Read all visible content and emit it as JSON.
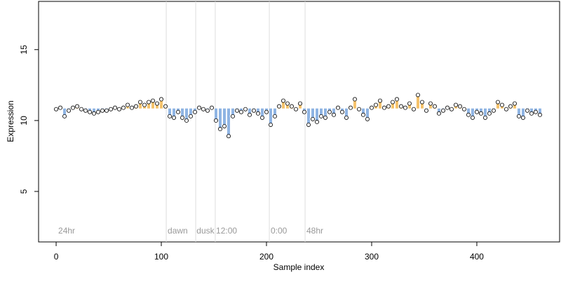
{
  "chart_data": {
    "type": "scatter",
    "x_label": "Sample index",
    "y_label": "Expression",
    "xlim": [
      -16.7,
      478.7
    ],
    "ylim": [
      1.44,
      18.4
    ],
    "xticks": [
      0,
      100,
      200,
      300,
      400
    ],
    "yticks": [
      5,
      10,
      15
    ],
    "reference_line": 10.85,
    "above_color": "#f5c26b",
    "below_color": "#8fb4e3",
    "vline_color": "#dddddd",
    "vlines": [
      104.7,
      132.7,
      151.3,
      202.7,
      236.7
    ],
    "annotations": [
      {
        "x": 2,
        "y": 2.2,
        "text": "24hr"
      },
      {
        "x": 106,
        "y": 2.2,
        "text": "dawn"
      },
      {
        "x": 133.5,
        "y": 2.2,
        "text": "dusk"
      },
      {
        "x": 152,
        "y": 2.2,
        "text": "12:00"
      },
      {
        "x": 204,
        "y": 2.2,
        "text": "0:00"
      },
      {
        "x": 238,
        "y": 2.2,
        "text": "48hr"
      }
    ],
    "series": [
      {
        "name": "Expression",
        "color": "#ffffff",
        "x": [
          0,
          4,
          8,
          12,
          16,
          20,
          24,
          28,
          32,
          36,
          40,
          44,
          48,
          52,
          56,
          60,
          64,
          68,
          72,
          76,
          80,
          84,
          88,
          92,
          96,
          100,
          104,
          108,
          112,
          116,
          120,
          124,
          128,
          132,
          136,
          140,
          144,
          148,
          152,
          156,
          160,
          164,
          168,
          172,
          176,
          180,
          184,
          188,
          192,
          196,
          200,
          204,
          208,
          212,
          216,
          220,
          224,
          228,
          232,
          236,
          240,
          244,
          248,
          252,
          256,
          260,
          264,
          268,
          272,
          276,
          280,
          284,
          288,
          292,
          296,
          300,
          304,
          308,
          312,
          316,
          320,
          324,
          328,
          332,
          336,
          340,
          344,
          348,
          352,
          356,
          360,
          364,
          368,
          372,
          376,
          380,
          384,
          388,
          392,
          396,
          400,
          404,
          408,
          412,
          416,
          420,
          424,
          428,
          432,
          436,
          440,
          444,
          448,
          452,
          456,
          460
        ],
        "values": [
          10.8,
          10.9,
          10.3,
          10.7,
          10.9,
          11.0,
          10.8,
          10.7,
          10.6,
          10.5,
          10.6,
          10.7,
          10.7,
          10.8,
          10.9,
          10.8,
          10.9,
          11.1,
          10.9,
          11.0,
          11.3,
          11.1,
          11.3,
          11.4,
          11.2,
          11.5,
          11.0,
          10.3,
          10.2,
          10.6,
          10.2,
          10.0,
          10.3,
          10.6,
          10.9,
          10.8,
          10.7,
          10.9,
          10.0,
          9.4,
          9.6,
          8.9,
          10.3,
          10.7,
          10.6,
          10.8,
          10.4,
          10.7,
          10.5,
          10.2,
          10.6,
          9.7,
          10.3,
          11.0,
          11.4,
          11.2,
          11.0,
          10.8,
          11.2,
          10.6,
          9.7,
          10.1,
          9.9,
          10.3,
          10.2,
          10.6,
          10.4,
          10.9,
          10.6,
          10.2,
          10.9,
          11.5,
          10.8,
          10.4,
          10.1,
          10.9,
          11.1,
          11.4,
          10.9,
          11.0,
          11.3,
          11.5,
          11.0,
          10.9,
          11.2,
          10.8,
          11.8,
          11.3,
          10.7,
          11.2,
          11.0,
          10.5,
          10.7,
          10.9,
          10.8,
          11.1,
          11.0,
          10.8,
          10.4,
          10.2,
          10.6,
          10.5,
          10.2,
          10.5,
          10.7,
          11.3,
          11.1,
          10.8,
          11.0,
          11.2,
          10.3,
          10.2,
          10.7,
          10.5,
          10.6,
          10.4
        ]
      }
    ]
  }
}
